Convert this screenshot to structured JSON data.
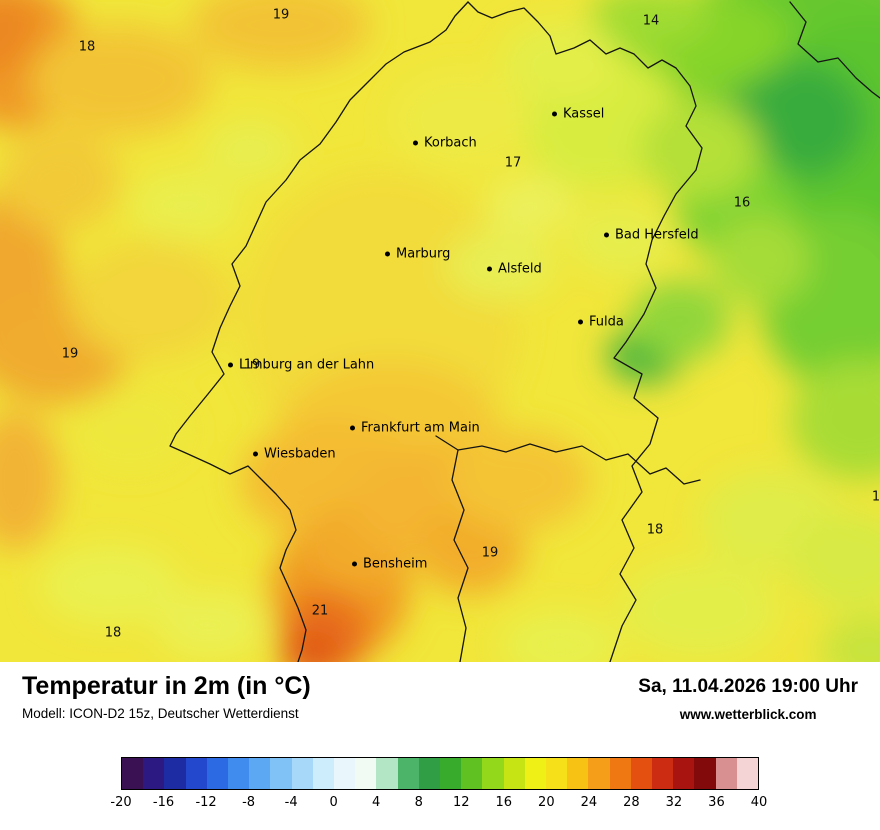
{
  "map": {
    "cities": [
      {
        "name": "Kassel"
      },
      {
        "name": "Korbach"
      },
      {
        "name": "Bad Hersfeld"
      },
      {
        "name": "Marburg"
      },
      {
        "name": "Alsfeld"
      },
      {
        "name": "Fulda"
      },
      {
        "name": "Limburg an der Lahn"
      },
      {
        "name": "Frankfurt am Main"
      },
      {
        "name": "Wiesbaden"
      },
      {
        "name": "Bensheim"
      }
    ],
    "temps": [
      "19",
      "18",
      "14",
      "17",
      "16",
      "19",
      "19",
      "18",
      "19",
      "21",
      "18",
      "1"
    ]
  },
  "footer": {
    "title": "Temperatur in 2m (in °C)",
    "model": "Modell: ICON-D2 15z, Deutscher Wetterdienst",
    "datetime": "Sa, 11.04.2026 19:00 Uhr",
    "website": "www.wetterblick.com"
  },
  "colorbar": {
    "ticks": [
      "-20",
      "-16",
      "-12",
      "-8",
      "-4",
      "0",
      "4",
      "8",
      "12",
      "16",
      "20",
      "24",
      "28",
      "32",
      "36",
      "40"
    ],
    "colors": [
      "#3a1254",
      "#2c1a82",
      "#1e2ca4",
      "#2348ce",
      "#2b6ae2",
      "#3f8cee",
      "#5da8f2",
      "#81c2f6",
      "#a7d8fa",
      "#cdecfc",
      "#e9f7fd",
      "#f2faf4",
      "#b2e6c4",
      "#4cb468",
      "#2f9e44",
      "#38aa2c",
      "#60c222",
      "#94d81c",
      "#c6e414",
      "#eef016",
      "#f6e01a",
      "#f8c214",
      "#f59e1a",
      "#f07812",
      "#e45010",
      "#cc2c12",
      "#a81410",
      "#820a0a",
      "#d89090",
      "#f4d4d4"
    ],
    "base_map_color": "#f1e63a"
  }
}
